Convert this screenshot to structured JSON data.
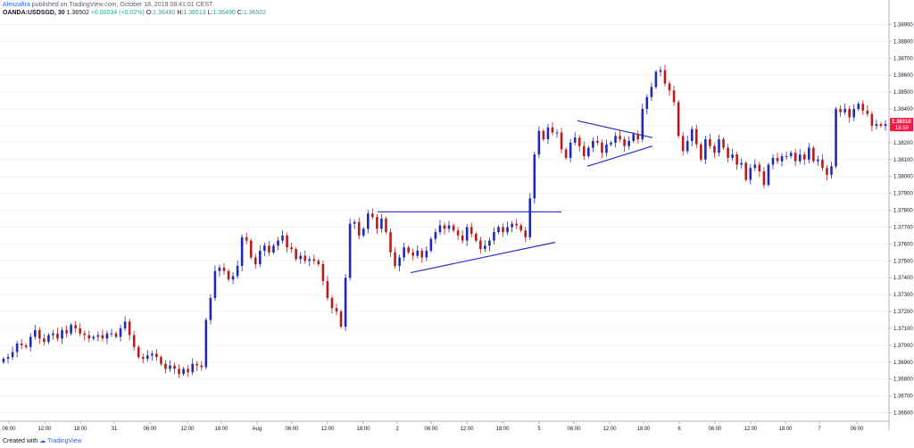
{
  "header": {
    "author": "Alexzafira",
    "published_text": "published on TradingView.com, October 18, 2019 08:41:01 CEST",
    "symbol": "OANDA:USDSGD, 30",
    "last": "1.36502",
    "change": "+0.00034 (+0.02%)",
    "open_label": "O:",
    "open": "1.36490",
    "high_label": "H:",
    "high": "1.36513",
    "low_label": "L:",
    "low": "1.36490",
    "close_label": "C:",
    "close": "1.36502"
  },
  "footer": {
    "created_with": "Created with",
    "brand": "TradingView"
  },
  "price_label": {
    "value": "1.38310",
    "countdown": "18:59",
    "color": "#ff1744"
  },
  "colors": {
    "up": "#1f2ab4",
    "down": "#b71c1c",
    "trendline": "#2b2bd4"
  },
  "chart_data": {
    "type": "candlestick",
    "ylim": [
      1.3655,
      1.3895
    ],
    "y_ticks": [
      "1.38900",
      "1.38800",
      "1.38700",
      "1.38600",
      "1.38500",
      "1.38400",
      "1.38300",
      "1.38200",
      "1.38100",
      "1.38000",
      "1.37900",
      "1.37800",
      "1.37700",
      "1.37600",
      "1.37500",
      "1.37400",
      "1.37300",
      "1.37200",
      "1.37100",
      "1.37000",
      "1.36900",
      "1.36800",
      "1.36700",
      "1.36600"
    ],
    "x_ticks": [
      "06:00",
      "12:00",
      "18:00",
      "31",
      "06:00",
      "12:00",
      "18:00",
      "Aug",
      "06:00",
      "12:00",
      "18:00",
      "2",
      "06:00",
      "12:00",
      "18:00",
      "5",
      "06:00",
      "12:00",
      "18:00",
      "6",
      "06:00",
      "12:00",
      "18:00",
      "7",
      "06:00"
    ],
    "price_series": [
      1.3692,
      1.3693,
      1.3696,
      1.3701,
      1.37,
      1.3699,
      1.3705,
      1.3709,
      1.3704,
      1.3702,
      1.3706,
      1.3707,
      1.3704,
      1.3709,
      1.3707,
      1.3712,
      1.371,
      1.3707,
      1.3706,
      1.3704,
      1.3705,
      1.3706,
      1.3704,
      1.3707,
      1.3707,
      1.3705,
      1.371,
      1.3714,
      1.3706,
      1.3699,
      1.3693,
      1.3692,
      1.3694,
      1.3695,
      1.3693,
      1.3689,
      1.3686,
      1.3688,
      1.3686,
      1.3683,
      1.3686,
      1.3684,
      1.3689,
      1.3688,
      1.3687,
      1.3715,
      1.3728,
      1.3744,
      1.3746,
      1.3744,
      1.3739,
      1.3741,
      1.3747,
      1.3764,
      1.3762,
      1.3752,
      1.3748,
      1.3756,
      1.3759,
      1.3755,
      1.3759,
      1.3762,
      1.3765,
      1.3758,
      1.3757,
      1.3751,
      1.3753,
      1.375,
      1.3751,
      1.375,
      1.3748,
      1.3738,
      1.3728,
      1.3722,
      1.372,
      1.3711,
      1.374,
      1.3772,
      1.3773,
      1.3765,
      1.3769,
      1.3778,
      1.3776,
      1.3769,
      1.3775,
      1.3767,
      1.3755,
      1.3747,
      1.3752,
      1.3758,
      1.3755,
      1.3753,
      1.3756,
      1.3752,
      1.3756,
      1.3763,
      1.3767,
      1.3771,
      1.3769,
      1.3771,
      1.3768,
      1.3765,
      1.3762,
      1.377,
      1.3766,
      1.3762,
      1.3757,
      1.3759,
      1.3762,
      1.3767,
      1.377,
      1.3767,
      1.377,
      1.3772,
      1.3771,
      1.3768,
      1.3764,
      1.3787,
      1.3813,
      1.3827,
      1.3822,
      1.3829,
      1.3826,
      1.3826,
      1.3816,
      1.3811,
      1.382,
      1.3823,
      1.3818,
      1.3812,
      1.3817,
      1.3821,
      1.382,
      1.3814,
      1.3819,
      1.382,
      1.3824,
      1.3822,
      1.3818,
      1.3821,
      1.3825,
      1.3822,
      1.384,
      1.3847,
      1.3853,
      1.3862,
      1.3863,
      1.3855,
      1.3851,
      1.3844,
      1.3824,
      1.3815,
      1.3821,
      1.3828,
      1.3819,
      1.381,
      1.3822,
      1.3818,
      1.3814,
      1.3822,
      1.3817,
      1.3811,
      1.3813,
      1.3807,
      1.3808,
      1.3798,
      1.3805,
      1.3807,
      1.3803,
      1.3795,
      1.3807,
      1.3811,
      1.3809,
      1.3812,
      1.3812,
      1.3814,
      1.3809,
      1.3813,
      1.381,
      1.3817,
      1.3809,
      1.381,
      1.3805,
      1.3801,
      1.3806,
      1.384,
      1.3838,
      1.384,
      1.3835,
      1.384,
      1.3843,
      1.3839,
      1.3837,
      1.383,
      1.3831,
      1.383,
      1.3831
    ],
    "trendlines": [
      {
        "name": "rectangle-top",
        "from": [
          "2",
          1.3779
        ],
        "to": [
          "5",
          1.3779
        ]
      },
      {
        "name": "rectangle-bottom",
        "from": [
          "2",
          1.3743
        ],
        "to": [
          "5",
          1.3761
        ]
      },
      {
        "name": "pennant-top",
        "from": [
          "5",
          1.3833
        ],
        "to": [
          "18:00",
          1.3823
        ]
      },
      {
        "name": "pennant-bottom",
        "from": [
          "5",
          1.3806
        ],
        "to": [
          "18:00",
          1.3818
        ]
      }
    ]
  }
}
